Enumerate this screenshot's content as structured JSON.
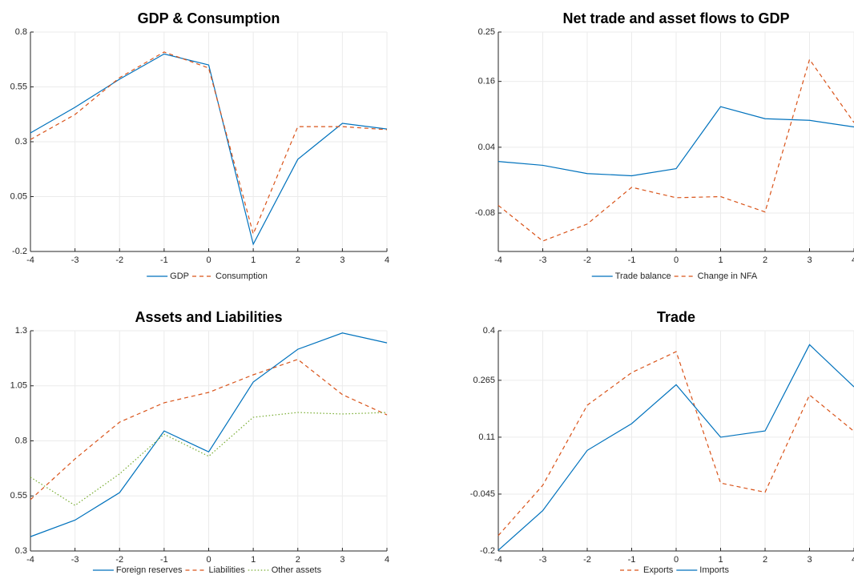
{
  "chart_data": [
    {
      "type": "line",
      "title": "GDP & Consumption",
      "x": [
        -4,
        -3,
        -2,
        -1,
        0,
        1,
        2,
        3,
        4
      ],
      "xlim": [
        -4,
        4
      ],
      "xticks": [
        -4,
        -3,
        -2,
        -1,
        0,
        1,
        2,
        3,
        4
      ],
      "ylim": [
        -0.2,
        0.8
      ],
      "yticks": [
        -0.2,
        0.05,
        0.3,
        0.55,
        0.8
      ],
      "grid": true,
      "series": [
        {
          "name": "GDP",
          "color": "#0072bd",
          "line_style": "solid",
          "values": [
            0.34,
            0.457,
            0.585,
            0.7,
            0.65,
            -0.167,
            0.22,
            0.384,
            0.358
          ]
        },
        {
          "name": "Consumption",
          "color": "#d95319",
          "line_style": "dashed",
          "values": [
            0.31,
            0.424,
            0.592,
            0.709,
            0.636,
            -0.12,
            0.369,
            0.369,
            0.355
          ]
        }
      ]
    },
    {
      "type": "line",
      "title": "Net trade and asset flows to GDP",
      "x": [
        -4,
        -3,
        -2,
        -1,
        0,
        1,
        2,
        3,
        4
      ],
      "xlim": [
        -4,
        4
      ],
      "xticks": [
        -4,
        -3,
        -2,
        -1,
        0,
        1,
        2,
        3,
        4
      ],
      "ylim": [
        -0.15,
        0.25
      ],
      "yticks": [
        -0.08,
        0.04,
        0.16,
        0.25
      ],
      "grid": true,
      "series": [
        {
          "name": "Trade balance",
          "color": "#0072bd",
          "line_style": "solid",
          "values": [
            0.014,
            0.007,
            -0.008,
            -0.012,
            0.001,
            0.114,
            0.092,
            0.089,
            0.077
          ]
        },
        {
          "name": "Change in NFA",
          "color": "#d95319",
          "line_style": "dashed",
          "values": [
            -0.066,
            -0.131,
            -0.1,
            -0.033,
            -0.052,
            -0.05,
            -0.078,
            0.2,
            0.085
          ]
        }
      ]
    },
    {
      "type": "line",
      "title": "Assets and Liabilities",
      "x": [
        -4,
        -3,
        -2,
        -1,
        0,
        1,
        2,
        3,
        4
      ],
      "xlim": [
        -4,
        4
      ],
      "xticks": [
        -4,
        -3,
        -2,
        -1,
        0,
        1,
        2,
        3,
        4
      ],
      "ylim": [
        0.3,
        1.3
      ],
      "yticks": [
        0.3,
        0.55,
        0.8,
        1.05,
        1.3
      ],
      "grid": true,
      "series": [
        {
          "name": "Foreign reserves",
          "color": "#0072bd",
          "line_style": "solid",
          "values": [
            0.365,
            0.44,
            0.565,
            0.845,
            0.75,
            1.067,
            1.216,
            1.29,
            1.245
          ]
        },
        {
          "name": "Liabilities",
          "color": "#d95319",
          "line_style": "dashed",
          "values": [
            0.533,
            0.718,
            0.885,
            0.973,
            1.02,
            1.1,
            1.17,
            1.01,
            0.918
          ]
        },
        {
          "name": "Other assets",
          "color": "#77ac30",
          "line_style": "dotted",
          "values": [
            0.635,
            0.507,
            0.65,
            0.83,
            0.73,
            0.907,
            0.929,
            0.922,
            0.929
          ]
        }
      ]
    },
    {
      "type": "line",
      "title": "Trade",
      "x": [
        -4,
        -3,
        -2,
        -1,
        0,
        1,
        2,
        3,
        4
      ],
      "xlim": [
        -4,
        4
      ],
      "xticks": [
        -4,
        -3,
        -2,
        -1,
        0,
        1,
        2,
        3,
        4
      ],
      "ylim": [
        -0.2,
        0.4
      ],
      "yticks": [
        -0.2,
        -0.045,
        0.11,
        0.265,
        0.4
      ],
      "grid": true,
      "series": [
        {
          "name": "Exports",
          "color": "#d95319",
          "line_style": "dashed",
          "values": [
            -0.158,
            -0.021,
            0.197,
            0.286,
            0.343,
            -0.015,
            -0.04,
            0.225,
            0.126
          ]
        },
        {
          "name": "Imports",
          "color": "#0072bd",
          "line_style": "solid",
          "values": [
            -0.198,
            -0.09,
            0.074,
            0.147,
            0.253,
            0.11,
            0.127,
            0.362,
            0.247
          ]
        }
      ]
    }
  ]
}
